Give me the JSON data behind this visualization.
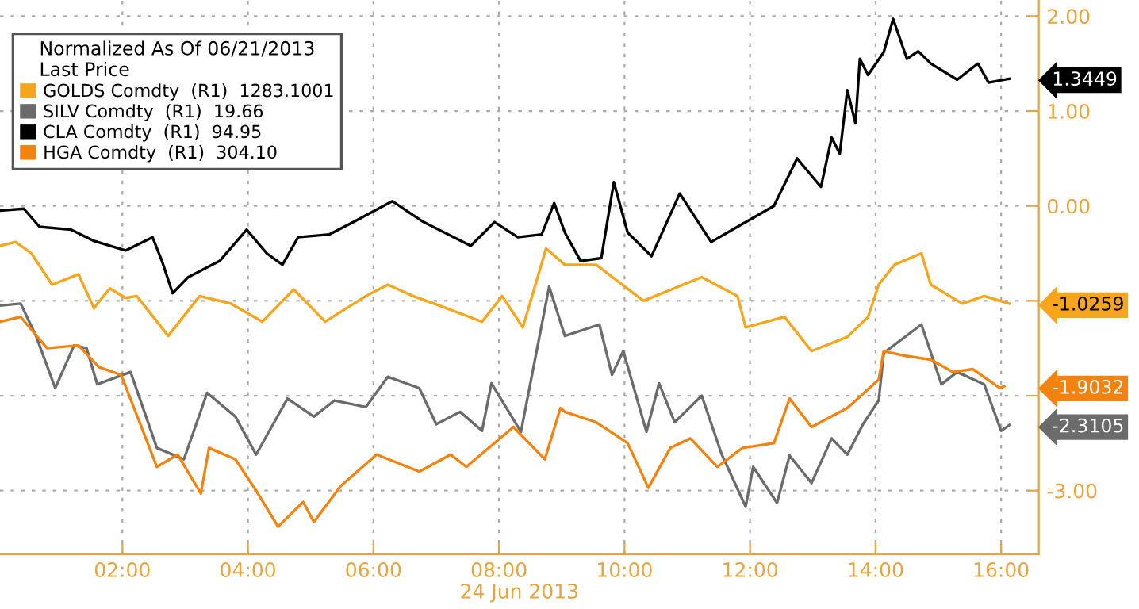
{
  "chart_data": {
    "type": "line",
    "xlabel": "24 Jun 2013",
    "y2lim": [
      -3.67,
      2.17
    ],
    "y2ticks": [
      1.3449,
      -1.0259,
      -1.9032,
      -2.3105
    ],
    "legend_title": "Normalized As Of 06/21/2013\nLast Price",
    "legend": "top left",
    "grid": true,
    "line_style": "solid",
    "xlim": [
      0.05,
      16.6
    ],
    "xticks": [
      {
        "value": 2,
        "label": "02:00"
      },
      {
        "value": 4,
        "label": "04:00"
      },
      {
        "value": 6,
        "label": "06:00"
      },
      {
        "value": 8,
        "label": "08:00"
      },
      {
        "value": 10,
        "label": "10:00"
      },
      {
        "value": 12,
        "label": "12:00"
      },
      {
        "value": 14,
        "label": "14:00"
      },
      {
        "value": 16,
        "label": "16:00"
      }
    ],
    "ylim": [
      -3.67,
      2.17
    ],
    "yticks": [
      {
        "value": 2,
        "label": "2.00"
      },
      {
        "value": 1,
        "label": "1.00"
      },
      {
        "value": 0,
        "label": "0.00"
      },
      {
        "value": -1,
        "label": null
      },
      {
        "value": -2,
        "label": null
      },
      {
        "value": -3,
        "label": "-3.00"
      }
    ],
    "series": [
      {
        "name": "GOLDS Comdty  (R1)  1283.1001",
        "color": "#f7a51c",
        "x": [
          0.05,
          0.3,
          0.55,
          0.88,
          1.3,
          1.55,
          1.6,
          1.8,
          2.05,
          2.23,
          2.73,
          3.23,
          3.73,
          4.23,
          4.73,
          5.23,
          5.88,
          6.23,
          6.63,
          7.05,
          7.73,
          8.05,
          8.38,
          8.75,
          9.05,
          9.55,
          10.3,
          11.23,
          11.8,
          11.93,
          12.55,
          12.98,
          13.55,
          13.88,
          14.05,
          14.3,
          14.73,
          14.88,
          15.38,
          15.73,
          16.13
        ],
        "values": [
          -0.42,
          -0.38,
          -0.5,
          -0.83,
          -0.72,
          -1.08,
          -1.03,
          -0.87,
          -0.97,
          -0.95,
          -1.37,
          -0.95,
          -1.03,
          -1.22,
          -0.88,
          -1.22,
          -0.95,
          -0.83,
          -0.95,
          -1.05,
          -1.22,
          -0.95,
          -1.28,
          -0.45,
          -0.62,
          -0.62,
          -1.0,
          -0.75,
          -0.95,
          -1.28,
          -1.17,
          -1.53,
          -1.38,
          -1.17,
          -0.83,
          -0.62,
          -0.5,
          -0.83,
          -1.03,
          -0.95,
          -1.03
        ]
      },
      {
        "name": "SILV Comdty  (R1)  19.66",
        "color": "#6b6b6b",
        "x": [
          0.05,
          0.38,
          0.63,
          0.93,
          1.23,
          1.43,
          1.6,
          2.13,
          2.55,
          2.98,
          3.35,
          3.8,
          4.13,
          4.63,
          5.05,
          5.38,
          5.88,
          6.23,
          6.73,
          7.0,
          7.38,
          7.73,
          7.88,
          8.35,
          8.8,
          9.05,
          9.6,
          9.8,
          9.98,
          10.35,
          10.55,
          10.8,
          11.23,
          11.55,
          11.93,
          12.05,
          12.43,
          12.63,
          12.98,
          13.3,
          13.55,
          13.8,
          14.05,
          14.13,
          14.73,
          15.05,
          15.3,
          15.73,
          16.0,
          16.13
        ],
        "values": [
          -1.05,
          -1.03,
          -1.38,
          -1.92,
          -1.47,
          -1.5,
          -1.88,
          -1.75,
          -2.55,
          -2.67,
          -1.97,
          -2.22,
          -2.62,
          -2.03,
          -2.22,
          -2.05,
          -2.12,
          -1.8,
          -1.92,
          -2.3,
          -2.17,
          -2.37,
          -1.87,
          -2.38,
          -0.85,
          -1.37,
          -1.25,
          -1.78,
          -1.53,
          -2.38,
          -1.87,
          -2.28,
          -2.0,
          -2.62,
          -3.17,
          -2.75,
          -3.13,
          -2.63,
          -2.92,
          -2.45,
          -2.62,
          -2.3,
          -2.05,
          -1.55,
          -1.25,
          -1.88,
          -1.75,
          -1.88,
          -2.37,
          -2.31
        ]
      },
      {
        "name": "CLA Comdty  (R1)  94.95",
        "color": "#000000",
        "x": [
          0.05,
          0.43,
          0.68,
          1.18,
          1.55,
          2.05,
          2.48,
          2.63,
          2.8,
          3.05,
          3.55,
          3.98,
          4.3,
          4.55,
          4.8,
          5.3,
          5.68,
          6.3,
          6.8,
          7.55,
          7.93,
          8.3,
          8.68,
          8.88,
          9.05,
          9.3,
          9.63,
          9.83,
          10.05,
          10.43,
          10.88,
          11.38,
          11.8,
          12.38,
          12.75,
          13.13,
          13.3,
          13.43,
          13.55,
          13.68,
          13.75,
          13.88,
          14.13,
          14.28,
          14.5,
          14.68,
          14.88,
          15.3,
          15.63,
          15.8,
          16.13
        ],
        "values": [
          -0.05,
          -0.03,
          -0.22,
          -0.25,
          -0.37,
          -0.47,
          -0.33,
          -0.58,
          -0.92,
          -0.75,
          -0.58,
          -0.25,
          -0.5,
          -0.62,
          -0.33,
          -0.3,
          -0.17,
          0.05,
          -0.17,
          -0.42,
          -0.17,
          -0.33,
          -0.3,
          0.03,
          -0.28,
          -0.58,
          -0.55,
          0.25,
          -0.28,
          -0.53,
          0.13,
          -0.38,
          -0.22,
          0,
          0.5,
          0.2,
          0.72,
          0.55,
          1.22,
          0.87,
          1.55,
          1.38,
          1.62,
          1.97,
          1.55,
          1.63,
          1.5,
          1.33,
          1.5,
          1.3,
          1.34
        ]
      },
      {
        "name": "HGA Comdty  (R1)  304.10",
        "color": "#f4820e",
        "x": [
          0.05,
          0.38,
          0.8,
          1.3,
          1.63,
          1.98,
          2.55,
          2.88,
          3.25,
          3.38,
          3.8,
          4.13,
          4.48,
          4.88,
          5.05,
          5.48,
          6.05,
          6.73,
          7.23,
          7.48,
          8.23,
          8.73,
          8.98,
          9.05,
          9.55,
          10.05,
          10.38,
          10.73,
          11.05,
          11.48,
          11.88,
          12.38,
          12.63,
          12.98,
          13.55,
          14.05,
          14.13,
          14.48,
          14.88,
          15.23,
          15.55,
          15.98,
          16.05
        ],
        "values": [
          -1.22,
          -1.17,
          -1.5,
          -1.47,
          -1.7,
          -1.78,
          -2.75,
          -2.62,
          -3.03,
          -2.55,
          -2.67,
          -3.0,
          -3.38,
          -3.12,
          -3.33,
          -2.95,
          -2.62,
          -2.8,
          -2.62,
          -2.75,
          -2.33,
          -2.67,
          -2.13,
          -2.17,
          -2.28,
          -2.5,
          -2.97,
          -2.55,
          -2.45,
          -2.75,
          -2.55,
          -2.5,
          -2.03,
          -2.33,
          -2.13,
          -1.83,
          -1.53,
          -1.58,
          -1.62,
          -1.75,
          -1.72,
          -1.92,
          -1.9
        ]
      }
    ]
  }
}
